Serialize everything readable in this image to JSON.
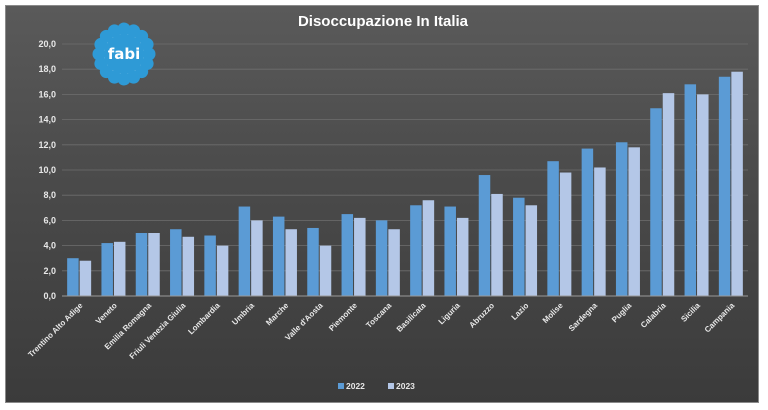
{
  "chart_data": {
    "type": "bar",
    "title": "Disoccupazione In Italia",
    "xlabel": "",
    "ylabel": "",
    "ylim": [
      0,
      20
    ],
    "yticks": [
      "0,0",
      "2,0",
      "4,0",
      "6,0",
      "8,0",
      "10,0",
      "12,0",
      "14,0",
      "16,0",
      "18,0",
      "20,0"
    ],
    "grid": true,
    "legend_position": "bottom",
    "categories": [
      "Trentino Alto Adige",
      "Veneto",
      "Emilia Romagna",
      "Friuli Venezia Giulia",
      "Lombardia",
      "Umbria",
      "Marche",
      "Valle d'Aosta",
      "Piemonte",
      "Toscana",
      "Basilicata",
      "Liguria",
      "Abruzzo",
      "Lazio",
      "Molise",
      "Sardegna",
      "Puglia",
      "Calabria",
      "Sicilia",
      "Campania"
    ],
    "series": [
      {
        "name": "2022",
        "color": "#5b9bd5",
        "values": [
          3.0,
          4.2,
          5.0,
          5.3,
          4.8,
          7.1,
          6.3,
          5.4,
          6.5,
          6.0,
          7.2,
          7.1,
          9.6,
          7.8,
          10.7,
          11.7,
          12.2,
          14.9,
          16.8,
          17.4
        ]
      },
      {
        "name": "2023",
        "color": "#b4c7e7",
        "values": [
          2.8,
          4.3,
          5.0,
          4.7,
          4.0,
          6.0,
          5.3,
          4.0,
          6.2,
          5.3,
          7.6,
          6.2,
          8.1,
          7.2,
          9.8,
          10.2,
          11.8,
          16.1,
          16.0,
          17.8
        ]
      }
    ]
  },
  "logo": {
    "text": "fabi",
    "icon": "flower-logo-icon",
    "color": "#2e9ad6"
  }
}
